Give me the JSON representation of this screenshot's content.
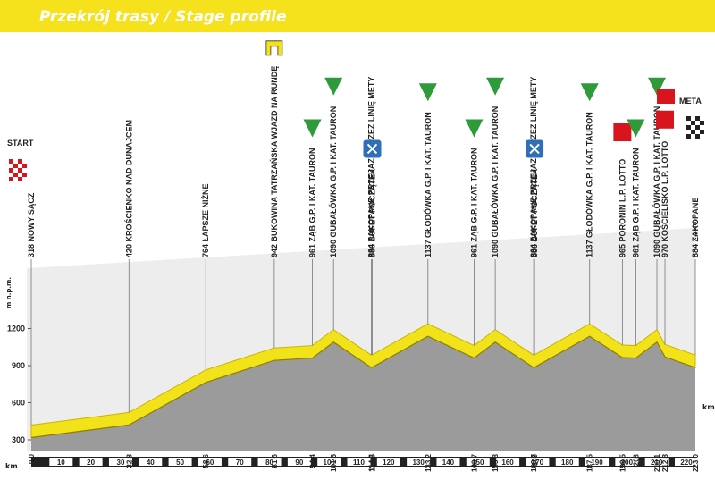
{
  "chart_data": {
    "type": "area",
    "title": "Przekrój trasy / Stage profile",
    "start_label": "START",
    "finish_label": "META",
    "y_label": "m n.p.m.",
    "x_label": "km",
    "x": [
      {
        "value": 0,
        "label": "0.0"
      },
      32.8,
      58.6,
      81.6,
      94.4,
      101.5,
      114.2,
      114.5,
      133.2,
      148.7,
      155.8,
      168.7,
      169.0,
      187.5,
      198.5,
      203.0,
      210.1,
      212.8,
      {
        "value": 223,
        "label": "223.0"
      }
    ],
    "values": [
      318,
      420,
      764,
      942,
      961,
      1090,
      884,
      886,
      1137,
      961,
      1090,
      884,
      886,
      1137,
      965,
      961,
      1090,
      970,
      884
    ],
    "names": [
      "NOWY SĄCZ",
      "KROŚCIENKO NAD DUNAJCEM",
      "ŁAPSZE NIŻNE",
      "BUKOWINA TATRZAŃSKA WJAZD NA RUNDĘ",
      "ZĄB G.P. I KAT. TAURON",
      "GUBAŁÓWKA G.P. I KAT. TAURON",
      "ZAKOPANE PRZEJAZD PRZEZ LINIĘ METY",
      "BUFET POCZĄTEK",
      "GŁODÓWKA G.P. I KAT. TAURON",
      "ZĄB G.P. I KAT. TAURON",
      "GUBAŁÓWKA G.P. I KAT. TAURON",
      "ZAKOPANE PRZEJAZD PRZEZ LINIĘ METY",
      "BUFET POCZĄTEK",
      "GŁODÓWKA G.P. I KAT. TAURON",
      "PORONIN L.P. LOTTO",
      "ZĄB G.P. I KAT. TAURON",
      "GUBAŁÓWKA G.P. I KAT. TAURON",
      "KOŚCIELISKO L.P. LOTTO",
      "ZAKOPANE"
    ],
    "color": "#f2e21a",
    "xlim": [
      0,
      223
    ],
    "xticks": [
      10,
      20,
      30,
      40,
      50,
      60,
      70,
      80,
      90,
      100,
      110,
      120,
      130,
      140,
      150,
      160,
      170,
      180,
      190,
      200,
      210,
      220
    ],
    "ylim": [
      300,
      1500
    ],
    "yticks": [
      300,
      600,
      900,
      1200
    ]
  }
}
